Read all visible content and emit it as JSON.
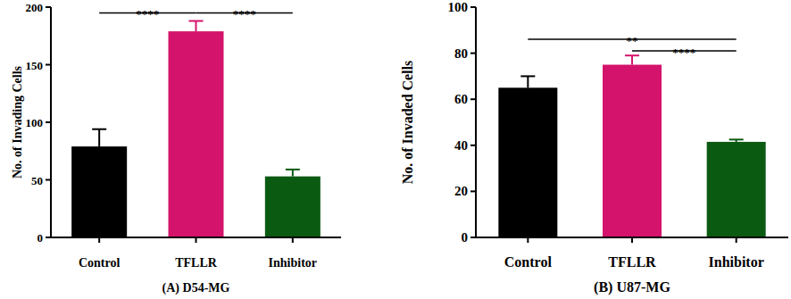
{
  "chart_data": [
    {
      "type": "bar",
      "title": "(A) D54-MG",
      "y_label": "No. of Invading Cells",
      "categories": [
        "Control",
        "TFLLR",
        "Inhibitor"
      ],
      "values": [
        79,
        179,
        53
      ],
      "errors": [
        15,
        9,
        6
      ],
      "colors": [
        "#000000",
        "#d4146c",
        "#0b5a12"
      ],
      "ylim": [
        0,
        200
      ],
      "yticks": [
        0,
        50,
        100,
        150,
        200
      ],
      "annotations": [
        {
          "from": "Control",
          "to": "TFLLR",
          "label": "****",
          "y": 195
        },
        {
          "from": "TFLLR",
          "to": "Inhibitor",
          "label": "****",
          "y": 195
        }
      ]
    },
    {
      "type": "bar",
      "title": "(B) U87-MG",
      "y_label": "No. of Invaded Cells",
      "categories": [
        "Control",
        "TFLLR",
        "Inhibitor"
      ],
      "values": [
        65,
        75,
        41.5
      ],
      "errors": [
        5,
        4,
        1
      ],
      "colors": [
        "#000000",
        "#d4146c",
        "#0b5a12"
      ],
      "ylim": [
        0,
        100
      ],
      "yticks": [
        0,
        20,
        40,
        60,
        80,
        100
      ],
      "annotations": [
        {
          "from": "Control",
          "to": "Inhibitor",
          "label": "**",
          "y": 86
        },
        {
          "from": "TFLLR",
          "to": "Inhibitor",
          "label": "****",
          "y": 81
        }
      ]
    }
  ]
}
